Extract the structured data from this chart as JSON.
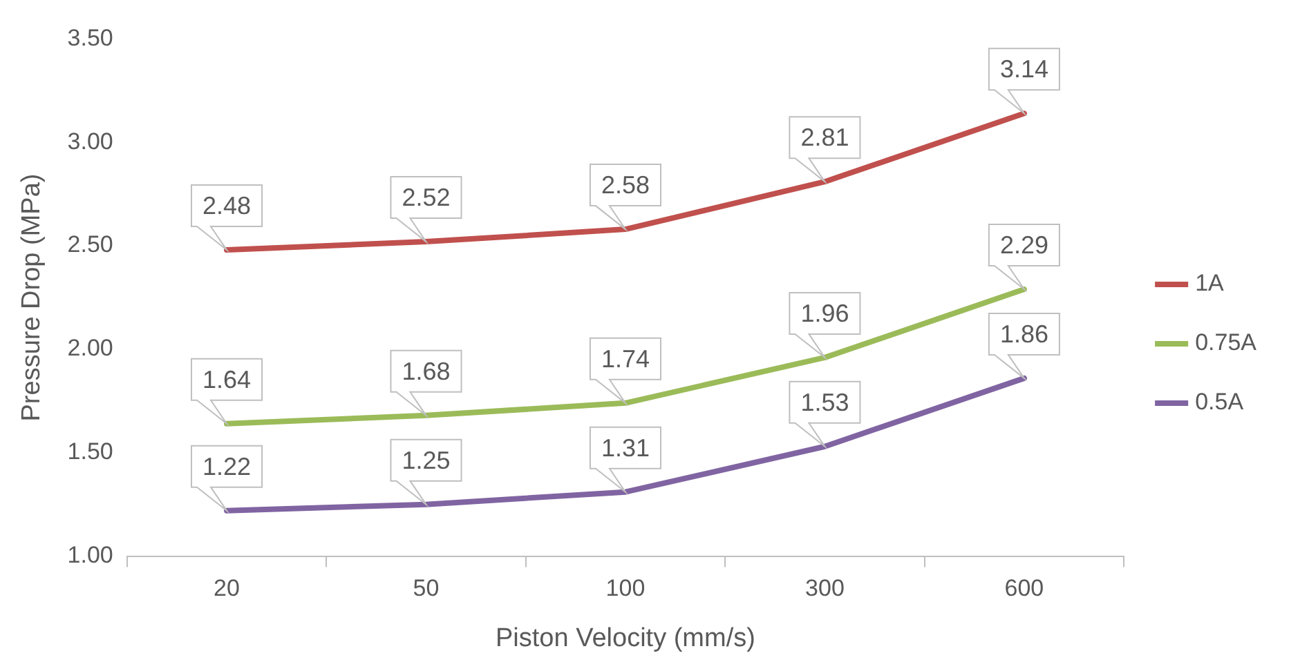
{
  "chart_data": {
    "type": "line",
    "xlabel": "Piston Velocity (mm/s)",
    "ylabel": "Pressure Drop (MPa)",
    "categories": [
      "20",
      "50",
      "100",
      "300",
      "600"
    ],
    "series": [
      {
        "name": "1A",
        "color": "#c0504d",
        "values": [
          2.48,
          2.52,
          2.58,
          2.81,
          3.14
        ]
      },
      {
        "name": "0.75A",
        "color": "#9bbb59",
        "values": [
          1.64,
          1.68,
          1.74,
          1.96,
          2.29
        ]
      },
      {
        "name": "0.5A",
        "color": "#8064a2",
        "values": [
          1.22,
          1.25,
          1.31,
          1.53,
          1.86
        ]
      }
    ],
    "ylim": [
      1,
      3.5
    ],
    "yticks": [
      {
        "value": 1,
        "label": "1.00"
      },
      {
        "value": 1.5,
        "label": "1.50"
      },
      {
        "value": 2,
        "label": "2.00"
      },
      {
        "value": 2.5,
        "label": "2.50"
      },
      {
        "value": 3,
        "label": "3.00"
      },
      {
        "value": 3.5,
        "label": "3.50"
      }
    ],
    "grid": false,
    "legend": "right",
    "marker": "none",
    "line_style": "solid",
    "data_labels": true
  }
}
